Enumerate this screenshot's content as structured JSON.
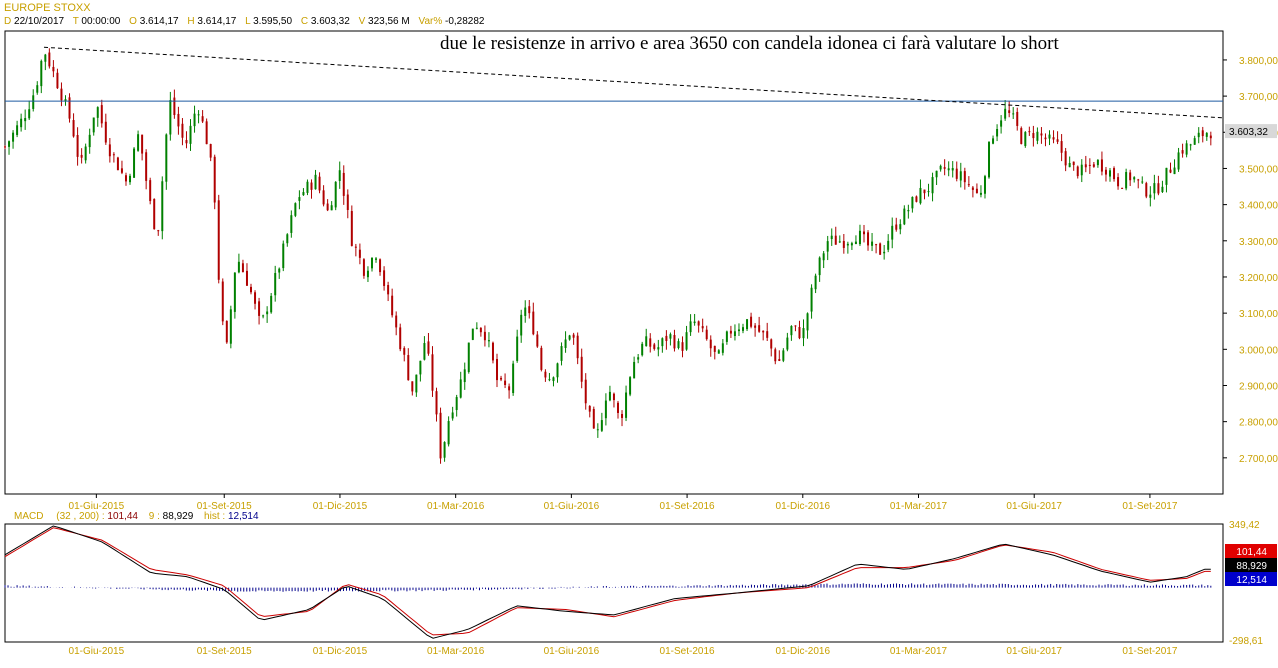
{
  "header": {
    "title": "EUROPE STOXX",
    "date": {
      "label": "D",
      "value": "22/10/2017"
    },
    "time": {
      "label": "T",
      "value": "00:00:00"
    },
    "open": {
      "label": "O",
      "value": "3.614,17"
    },
    "high": {
      "label": "H",
      "value": "3.614,17"
    },
    "low": {
      "label": "L",
      "value": "3.595,50"
    },
    "close": {
      "label": "C",
      "value": "3.603,32"
    },
    "volume": {
      "label": "V",
      "value": "323,56 M"
    },
    "varpct": {
      "label": "Var%",
      "value": "-0,28282"
    }
  },
  "annotation": "due le resistenze in arrivo e area 3650 con candela idonea ci farà valutare lo short",
  "colors": {
    "up": "#008000",
    "down": "#b00000",
    "accent": "#c8a000",
    "hline": "#1e5aa0",
    "macd": "#000000",
    "signal": "#cc0000",
    "hist": "#00008b"
  },
  "chart_data": [
    {
      "type": "candlestick",
      "title": "EUROPE STOXX",
      "ylim": [
        2600,
        3880
      ],
      "yticks": [
        "2.700,00",
        "2.800,00",
        "2.900,00",
        "3.000,00",
        "3.100,00",
        "3.200,00",
        "3.300,00",
        "3.400,00",
        "3.500,00",
        "3.600,00",
        "3.700,00",
        "3.800,00"
      ],
      "ytick_values": [
        2700,
        2800,
        2900,
        3000,
        3100,
        3200,
        3300,
        3400,
        3500,
        3600,
        3700,
        3800
      ],
      "xticks": [
        "01-Giu-2015",
        "01-Set-2015",
        "01-Dic-2015",
        "01-Mar-2016",
        "01-Giu-2016",
        "01-Set-2016",
        "01-Dic-2016",
        "01-Mar-2017",
        "01-Giu-2017",
        "01-Set-2017"
      ],
      "last_price_label": "3.603,32",
      "last_price": 3603.32,
      "horizontal_line": 3686,
      "trendline": [
        {
          "t": 0.032,
          "y": 3835
        },
        {
          "t": 1.0,
          "y": 3640
        }
      ],
      "close_path": [
        [
          0.0,
          3560
        ],
        [
          0.015,
          3640
        ],
        [
          0.025,
          3720
        ],
        [
          0.032,
          3830
        ],
        [
          0.045,
          3720
        ],
        [
          0.055,
          3620
        ],
        [
          0.062,
          3500
        ],
        [
          0.075,
          3680
        ],
        [
          0.085,
          3560
        ],
        [
          0.1,
          3460
        ],
        [
          0.11,
          3600
        ],
        [
          0.118,
          3420
        ],
        [
          0.125,
          3310
        ],
        [
          0.135,
          3690
        ],
        [
          0.148,
          3560
        ],
        [
          0.158,
          3680
        ],
        [
          0.167,
          3560
        ],
        [
          0.172,
          3430
        ],
        [
          0.177,
          3100
        ],
        [
          0.182,
          3000
        ],
        [
          0.19,
          3260
        ],
        [
          0.2,
          3180
        ],
        [
          0.21,
          3060
        ],
        [
          0.225,
          3230
        ],
        [
          0.24,
          3420
        ],
        [
          0.255,
          3470
        ],
        [
          0.265,
          3380
        ],
        [
          0.275,
          3500
        ],
        [
          0.285,
          3300
        ],
        [
          0.295,
          3220
        ],
        [
          0.305,
          3270
        ],
        [
          0.315,
          3130
        ],
        [
          0.325,
          3010
        ],
        [
          0.335,
          2880
        ],
        [
          0.345,
          3030
        ],
        [
          0.352,
          2870
        ],
        [
          0.358,
          2700
        ],
        [
          0.365,
          2820
        ],
        [
          0.375,
          2920
        ],
        [
          0.385,
          3080
        ],
        [
          0.395,
          3040
        ],
        [
          0.405,
          2900
        ],
        [
          0.415,
          2890
        ],
        [
          0.425,
          3130
        ],
        [
          0.435,
          3050
        ],
        [
          0.44,
          2950
        ],
        [
          0.448,
          2920
        ],
        [
          0.455,
          2980
        ],
        [
          0.465,
          3060
        ],
        [
          0.475,
          2880
        ],
        [
          0.485,
          2740
        ],
        [
          0.495,
          2900
        ],
        [
          0.505,
          2800
        ],
        [
          0.515,
          2960
        ],
        [
          0.525,
          3020
        ],
        [
          0.535,
          3000
        ],
        [
          0.545,
          3040
        ],
        [
          0.555,
          3000
        ],
        [
          0.565,
          3080
        ],
        [
          0.575,
          3030
        ],
        [
          0.585,
          2970
        ],
        [
          0.595,
          3050
        ],
        [
          0.61,
          3080
        ],
        [
          0.625,
          3030
        ],
        [
          0.635,
          2960
        ],
        [
          0.645,
          3060
        ],
        [
          0.655,
          3040
        ],
        [
          0.665,
          3200
        ],
        [
          0.675,
          3300
        ],
        [
          0.69,
          3300
        ],
        [
          0.7,
          3320
        ],
        [
          0.71,
          3280
        ],
        [
          0.72,
          3270
        ],
        [
          0.73,
          3340
        ],
        [
          0.74,
          3380
        ],
        [
          0.75,
          3430
        ],
        [
          0.76,
          3450
        ],
        [
          0.77,
          3500
        ],
        [
          0.78,
          3490
        ],
        [
          0.79,
          3460
        ],
        [
          0.8,
          3420
        ],
        [
          0.81,
          3590
        ],
        [
          0.82,
          3660
        ],
        [
          0.827,
          3640
        ],
        [
          0.835,
          3580
        ],
        [
          0.845,
          3600
        ],
        [
          0.855,
          3580
        ],
        [
          0.865,
          3560
        ],
        [
          0.875,
          3500
        ],
        [
          0.885,
          3490
        ],
        [
          0.895,
          3520
        ],
        [
          0.905,
          3500
        ],
        [
          0.915,
          3460
        ],
        [
          0.925,
          3480
        ],
        [
          0.935,
          3440
        ],
        [
          0.945,
          3440
        ],
        [
          0.955,
          3490
        ],
        [
          0.965,
          3550
        ],
        [
          0.975,
          3570
        ],
        [
          0.985,
          3600
        ],
        [
          0.99,
          3603
        ]
      ]
    },
    {
      "type": "line",
      "title": "MACD",
      "params": "(32 , 200)",
      "macd_value": "101,44",
      "signal_label": "9",
      "signal_value": "88,929",
      "hist_label": "hist",
      "hist_value": "12,514",
      "ylim": [
        -298.61,
        349.42
      ],
      "ytick_top": "349,42",
      "ytick_bottom": "-298,61",
      "xticks": [
        "01-Giu-2015",
        "01-Set-2015",
        "01-Dic-2015",
        "01-Mar-2016",
        "01-Giu-2016",
        "01-Set-2016",
        "01-Dic-2016",
        "01-Mar-2017",
        "01-Giu-2017",
        "01-Set-2017"
      ],
      "series": [
        {
          "name": "MACD",
          "points": [
            [
              0.0,
              180
            ],
            [
              0.04,
              340
            ],
            [
              0.08,
              250
            ],
            [
              0.12,
              80
            ],
            [
              0.15,
              60
            ],
            [
              0.18,
              -10
            ],
            [
              0.21,
              -180
            ],
            [
              0.25,
              -120
            ],
            [
              0.28,
              10
            ],
            [
              0.31,
              -60
            ],
            [
              0.35,
              -280
            ],
            [
              0.38,
              -230
            ],
            [
              0.42,
              -100
            ],
            [
              0.46,
              -130
            ],
            [
              0.5,
              -150
            ],
            [
              0.55,
              -60
            ],
            [
              0.6,
              -30
            ],
            [
              0.66,
              10
            ],
            [
              0.7,
              130
            ],
            [
              0.74,
              100
            ],
            [
              0.78,
              160
            ],
            [
              0.82,
              240
            ],
            [
              0.86,
              180
            ],
            [
              0.9,
              90
            ],
            [
              0.94,
              30
            ],
            [
              0.97,
              60
            ],
            [
              0.985,
              101.44
            ]
          ]
        },
        {
          "name": "9",
          "points": [
            [
              0.0,
              170
            ],
            [
              0.04,
              330
            ],
            [
              0.08,
              260
            ],
            [
              0.12,
              100
            ],
            [
              0.15,
              70
            ],
            [
              0.18,
              10
            ],
            [
              0.21,
              -160
            ],
            [
              0.25,
              -130
            ],
            [
              0.28,
              20
            ],
            [
              0.31,
              -40
            ],
            [
              0.35,
              -260
            ],
            [
              0.38,
              -250
            ],
            [
              0.42,
              -110
            ],
            [
              0.46,
              -120
            ],
            [
              0.5,
              -160
            ],
            [
              0.55,
              -70
            ],
            [
              0.6,
              -30
            ],
            [
              0.66,
              0
            ],
            [
              0.7,
              110
            ],
            [
              0.74,
              110
            ],
            [
              0.78,
              150
            ],
            [
              0.82,
              235
            ],
            [
              0.86,
              195
            ],
            [
              0.9,
              100
            ],
            [
              0.94,
              40
            ],
            [
              0.97,
              50
            ],
            [
              0.985,
              88.929
            ]
          ]
        },
        {
          "name": "hist",
          "points": [
            [
              0.0,
              10
            ],
            [
              0.2,
              -20
            ],
            [
              0.35,
              -15
            ],
            [
              0.5,
              5
            ],
            [
              0.7,
              20
            ],
            [
              0.985,
              12.514
            ]
          ]
        }
      ]
    }
  ]
}
